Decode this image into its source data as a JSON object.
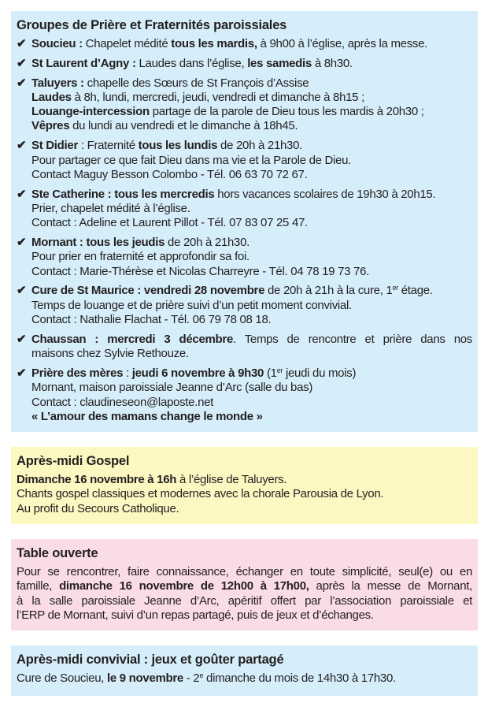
{
  "colors": {
    "blue_box": "#d6eefa",
    "yellow_box": "#fdf8c2",
    "pink_box": "#fadce6",
    "text": "#231f20"
  },
  "check_icon": "✔",
  "groupes": {
    "title": "Groupes de Prière et Fraternités paroissiales",
    "items": [
      {
        "lines": [
          [
            {
              "t": "Soucieu :",
              "b": true
            },
            {
              "t": " Chapelet médité "
            },
            {
              "t": "tous les mardis,",
              "b": true
            },
            {
              "t": " à 9h00 à l’église, après la messe."
            }
          ]
        ]
      },
      {
        "lines": [
          [
            {
              "t": "St Laurent d’Agny :",
              "b": true
            },
            {
              "t": " Laudes dans l’église, "
            },
            {
              "t": "les samedis",
              "b": true
            },
            {
              "t": " à 8h30."
            }
          ]
        ]
      },
      {
        "lines": [
          [
            {
              "t": "Taluyers :",
              "b": true
            },
            {
              "t": " chapelle des Sœurs de St François d’Assise"
            }
          ],
          [
            {
              "t": "Laudes",
              "b": true
            },
            {
              "t": " à 8h, lundi, mercredi, jeudi, vendredi et dimanche à 8h15 ;"
            }
          ],
          [
            {
              "t": "Louange-intercession",
              "b": true
            },
            {
              "t": " partage de la parole de Dieu tous les mardis à 20h30 ;"
            }
          ],
          [
            {
              "t": "Vêpres",
              "b": true
            },
            {
              "t": " du lundi au vendredi et le dimanche à 18h45."
            }
          ]
        ]
      },
      {
        "lines": [
          [
            {
              "t": "St Didier",
              "b": true
            },
            {
              "t": " : Fraternité "
            },
            {
              "t": "tous les lundis",
              "b": true
            },
            {
              "t": " de 20h à 21h30."
            }
          ],
          [
            {
              "t": "Pour partager ce que fait Dieu dans ma vie et la Parole de Dieu."
            }
          ],
          [
            {
              "t": "Contact Maguy Besson Colombo - Tél. 06 63 70 72 67."
            }
          ]
        ]
      },
      {
        "lines": [
          [
            {
              "t": "Ste Catherine : tous les mercredis",
              "b": true
            },
            {
              "t": " hors vacances scolaires de 19h30 à 20h15."
            }
          ],
          [
            {
              "t": "Prier, chapelet médité à l’église."
            }
          ],
          [
            {
              "t": "Contact : Adeline et Laurent Pillot - Tél. 07 83 07 25 47."
            }
          ]
        ]
      },
      {
        "lines": [
          [
            {
              "t": "Mornant : tous les jeudis",
              "b": true
            },
            {
              "t": " de 20h à 21h30."
            }
          ],
          [
            {
              "t": "Pour prier en fraternité et approfondir sa foi."
            }
          ],
          [
            {
              "t": "Contact : Marie-Thérèse et Nicolas Charreyre - Tél. 04 78 19 73 76."
            }
          ]
        ]
      },
      {
        "lines": [
          [
            {
              "t": "Cure de St Maurice : vendredi 28 novembre",
              "b": true
            },
            {
              "t": " de 20h à 21h à la cure, 1"
            },
            {
              "t": "er",
              "sup": true
            },
            {
              "t": " étage."
            }
          ],
          [
            {
              "t": "Temps de louange et de prière suivi d’un petit moment convivial."
            }
          ],
          [
            {
              "t": "Contact : Nathalie Flachat - Tél. 06 79 78 08 18."
            }
          ]
        ]
      },
      {
        "justify_first": true,
        "lines": [
          [
            {
              "t": "Chaussan : mercredi 3 décembre",
              "b": true
            },
            {
              "t": ". Temps de rencontre et prière dans nos"
            }
          ],
          [
            {
              "t": "maisons chez Sylvie Rethouze."
            }
          ]
        ]
      },
      {
        "lines": [
          [
            {
              "t": "Prière des mères",
              "b": true
            },
            {
              "t": " : "
            },
            {
              "t": "jeudi 6 novembre à 9h30",
              "b": true
            },
            {
              "t": " (1"
            },
            {
              "t": "er",
              "sup": true
            },
            {
              "t": " jeudi du mois)"
            }
          ],
          [
            {
              "t": "Mornant, maison paroissiale Jeanne d’Arc (salle du bas)"
            }
          ],
          [
            {
              "t": "Contact : claudineseon@laposte.net"
            }
          ],
          [
            {
              "t": "« L’amour des mamans change le monde »",
              "b": true
            }
          ]
        ]
      }
    ]
  },
  "gospel": {
    "title": "Après-midi Gospel",
    "lines": [
      [
        {
          "t": "Dimanche 16 novembre à 16h",
          "b": true
        },
        {
          "t": " à l’église de Taluyers."
        }
      ],
      [
        {
          "t": "Chants gospel classiques et modernes avec la chorale Parousia de Lyon."
        }
      ],
      [
        {
          "t": "Au profit du Secours Catholique."
        }
      ]
    ]
  },
  "table": {
    "title": "Table ouverte",
    "justify": true,
    "lines": [
      [
        {
          "t": "Pour se rencontrer, faire connaissance, échanger en toute simplicité, seul(e) ou en"
        }
      ],
      [
        {
          "t": "famille, "
        },
        {
          "t": "dimanche 16 novembre de 12h00 à 17h00,",
          "b": true
        },
        {
          "t": " après la messe de Mornant,"
        }
      ],
      [
        {
          "t": "à la salle paroissiale Jeanne d’Arc, apéritif offert par l’association paroissiale et"
        }
      ],
      [
        {
          "t": "l’ERP de Mornant, suivi d’un repas partagé, puis de jeux et d’échanges."
        }
      ]
    ]
  },
  "convivial": {
    "title": "Après-midi convivial : jeux et goûter partagé",
    "lines": [
      [
        {
          "t": "Cure de Soucieu, "
        },
        {
          "t": "le 9 novembre",
          "b": true
        },
        {
          "t": " - 2"
        },
        {
          "t": "e",
          "sup": true
        },
        {
          "t": " dimanche du mois de 14h30 à 17h30."
        }
      ]
    ]
  }
}
